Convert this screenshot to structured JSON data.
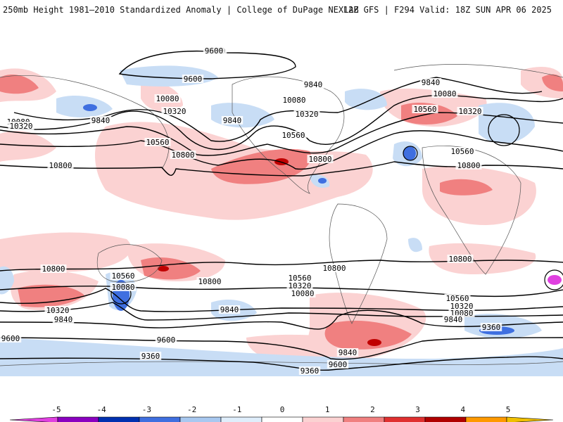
{
  "header": {
    "left_title": "250mb Height 1981–2010 Standardized Anomaly | College of DuPage NEXLAB",
    "right_title": "12Z GFS | F294 Valid: 18Z SUN APR 06 2025"
  },
  "colorbar": {
    "ticks": [
      "-5",
      "-4",
      "-3",
      "-2",
      "-1",
      "0",
      "1",
      "2",
      "3",
      "4",
      "5"
    ],
    "colors": [
      "#e040e0",
      "#8a00c0",
      "#0030b0",
      "#3f6fe0",
      "#a8c8f0",
      "#dfeefb",
      "#ffffff",
      "#fbd2d2",
      "#f08080",
      "#e03030",
      "#b00000",
      "#ff9900",
      "#f0c000"
    ]
  },
  "map": {
    "contour_labels": [
      {
        "text": "9600",
        "key": "a"
      },
      {
        "text": "9600",
        "key": "b"
      },
      {
        "text": "9840",
        "key": "c"
      },
      {
        "text": "9840",
        "key": "d"
      },
      {
        "text": "9840",
        "key": "e"
      },
      {
        "text": "9840",
        "key": "f"
      },
      {
        "text": "10080",
        "key": "g"
      },
      {
        "text": "10080",
        "key": "h"
      },
      {
        "text": "10080",
        "key": "i"
      },
      {
        "text": "10080",
        "key": "j"
      },
      {
        "text": "10320",
        "key": "k"
      },
      {
        "text": "10320",
        "key": "l"
      },
      {
        "text": "10320",
        "key": "m"
      },
      {
        "text": "10320",
        "key": "n"
      },
      {
        "text": "10560",
        "key": "o"
      },
      {
        "text": "10560",
        "key": "p"
      },
      {
        "text": "10560",
        "key": "q"
      },
      {
        "text": "10560",
        "key": "r"
      },
      {
        "text": "10800",
        "key": "s"
      },
      {
        "text": "10800",
        "key": "t"
      },
      {
        "text": "10800",
        "key": "u"
      },
      {
        "text": "10800",
        "key": "v"
      },
      {
        "text": "10800",
        "key": "w"
      },
      {
        "text": "10800",
        "key": "x"
      },
      {
        "text": "10800",
        "key": "y"
      },
      {
        "text": "10800",
        "key": "z"
      },
      {
        "text": "10560",
        "key": "aa"
      },
      {
        "text": "10320",
        "key": "ab"
      },
      {
        "text": "10080",
        "key": "ac"
      },
      {
        "text": "10560",
        "key": "ad"
      },
      {
        "text": "10320",
        "key": "ae"
      },
      {
        "text": "10080",
        "key": "af"
      },
      {
        "text": "9840",
        "key": "ag"
      },
      {
        "text": "10320",
        "key": "ah"
      },
      {
        "text": "9840",
        "key": "ai"
      },
      {
        "text": "9840",
        "key": "aj"
      },
      {
        "text": "9600",
        "key": "ak"
      },
      {
        "text": "9600",
        "key": "al"
      },
      {
        "text": "9600",
        "key": "am"
      },
      {
        "text": "9360",
        "key": "an"
      },
      {
        "text": "9360",
        "key": "ao"
      },
      {
        "text": "9360",
        "key": "ap"
      },
      {
        "text": "9840",
        "key": "aq"
      },
      {
        "text": "9600",
        "key": "ar"
      },
      {
        "text": "10560",
        "key": "as"
      },
      {
        "text": "10080",
        "key": "at"
      }
    ]
  }
}
